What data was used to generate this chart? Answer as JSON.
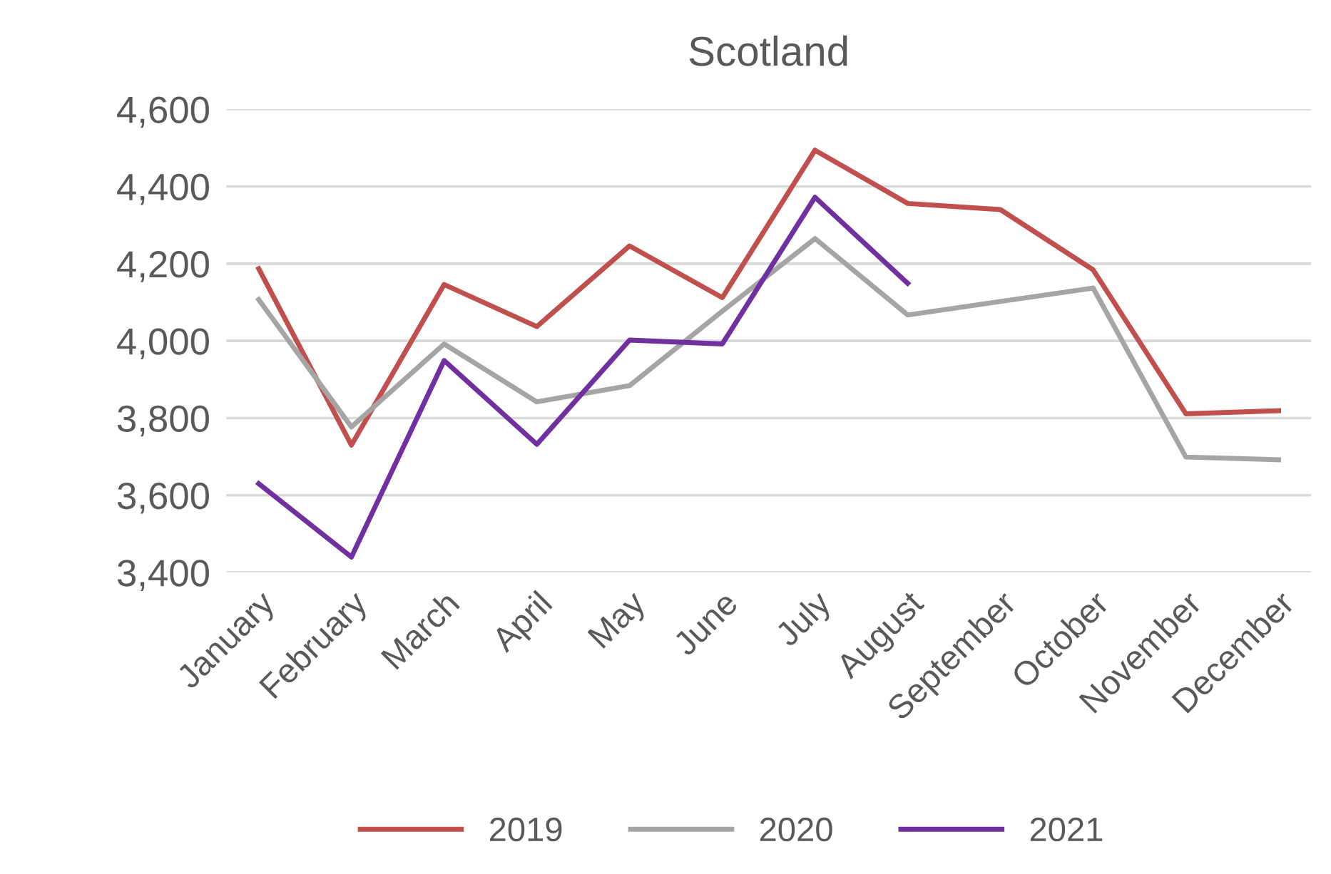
{
  "chart_data": {
    "type": "line",
    "title": "Scotland",
    "categories": [
      "January",
      "February",
      "March",
      "April",
      "May",
      "June",
      "July",
      "August",
      "September",
      "October",
      "November",
      "December"
    ],
    "series": [
      {
        "name": "2019",
        "color": "#c0504d",
        "values": [
          4187,
          3730,
          4146,
          4037,
          4246,
          4112,
          4494,
          4356,
          4340,
          4184,
          3811,
          3819
        ]
      },
      {
        "name": "2020",
        "color": "#a5a5a5",
        "values": [
          4107,
          3777,
          3992,
          3842,
          3884,
          4077,
          4265,
          4067,
          4102,
          4137,
          3699,
          3692
        ]
      },
      {
        "name": "2021",
        "color": "#7030a0",
        "values": [
          3630,
          3440,
          3949,
          3732,
          4002,
          3992,
          4372,
          4149,
          null,
          null,
          null,
          null
        ]
      }
    ],
    "ylim": [
      3400,
      4600
    ],
    "yticks": [
      {
        "value": 3400,
        "label": "3,400"
      },
      {
        "value": 3600,
        "label": "3,600"
      },
      {
        "value": 3800,
        "label": "3,800"
      },
      {
        "value": 4000,
        "label": "4,000"
      },
      {
        "value": 4200,
        "label": "4,200"
      },
      {
        "value": 4400,
        "label": "4,400"
      },
      {
        "value": 4600,
        "label": "4,600"
      }
    ],
    "grid": "y",
    "legend": "bottom",
    "marker": "none",
    "line_style": "solid"
  }
}
